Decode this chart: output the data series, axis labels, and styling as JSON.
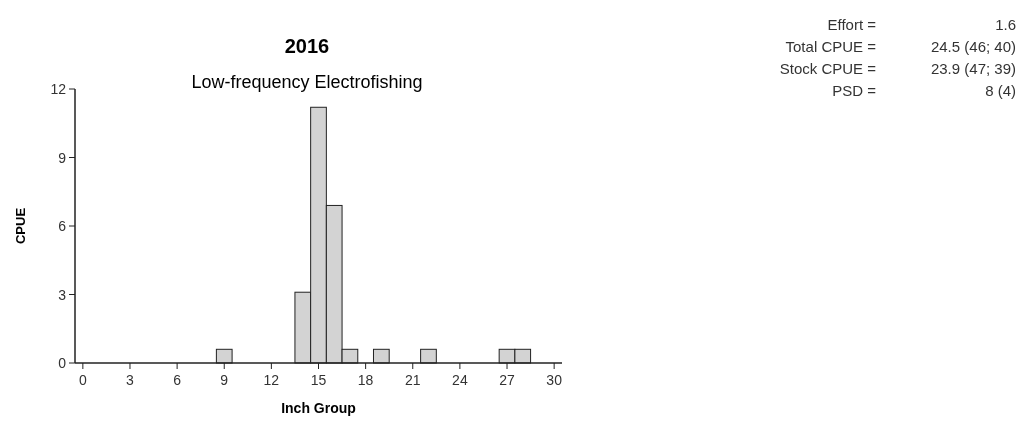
{
  "chart_data": {
    "type": "histogram",
    "title": "2016",
    "subtitle": "Low-frequency Electrofishing",
    "xlabel": "Inch Group",
    "ylabel": "CPUE",
    "bins": [
      8.5,
      9.5,
      10.5,
      11.5,
      12.5,
      13.5,
      14.5,
      15.5,
      16.5,
      17.5,
      18.5,
      19.5,
      20.5,
      21.5,
      22.5,
      23.5,
      24.5,
      25.5,
      26.5,
      27.5,
      28.5
    ],
    "values": [
      0.6,
      0,
      0,
      0,
      0,
      3.1,
      11.2,
      6.9,
      0.6,
      0,
      0.6,
      0,
      0,
      0.6,
      0,
      0,
      0,
      0,
      0.6,
      0.6
    ],
    "color": "#d3d3d3",
    "xlim": [
      -0.5,
      30.5
    ],
    "ylim": [
      0,
      12
    ],
    "xticks": [
      0,
      3,
      6,
      9,
      12,
      15,
      18,
      21,
      24,
      27,
      30
    ],
    "yticks": [
      0,
      3,
      6,
      9,
      12
    ],
    "grid": false,
    "annotations": [
      "Effort = 1.6",
      "Total CPUE = 24.5 (46; 40)",
      "Stock CPUE = 23.9 (47; 39)",
      "PSD = 8 (4)"
    ]
  }
}
